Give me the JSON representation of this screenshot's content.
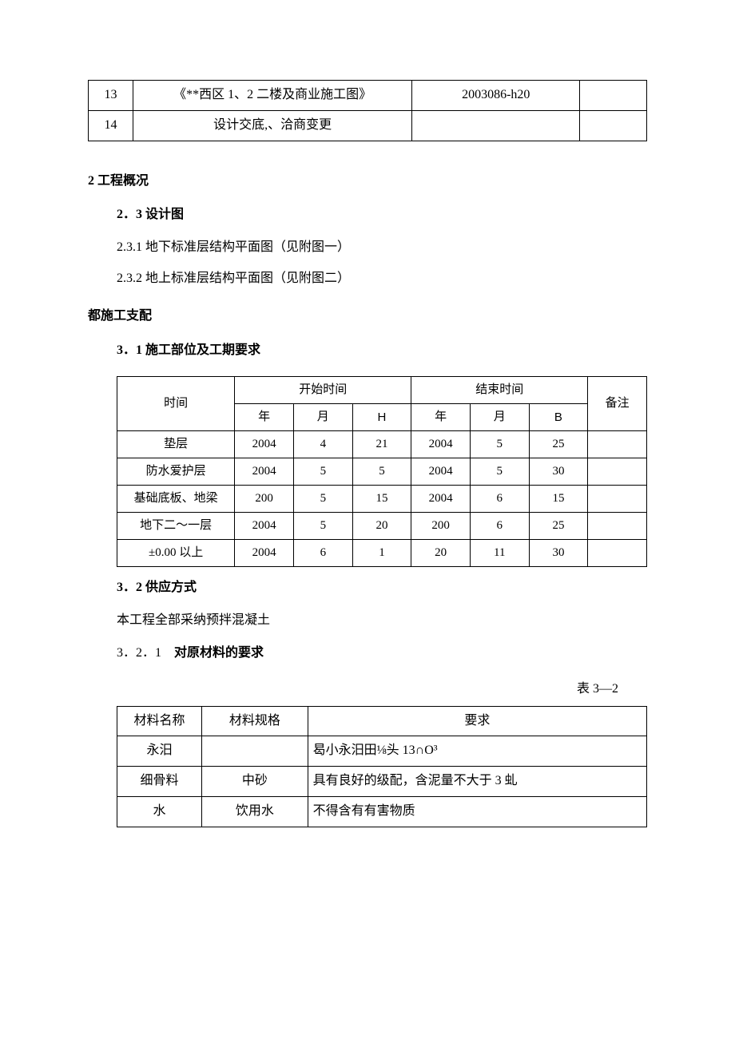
{
  "topTable": {
    "rows": [
      {
        "num": "13",
        "title": "《**西区 1、2 二楼及商业施工图》",
        "code": "2003086-h20",
        "blank": ""
      },
      {
        "num": "14",
        "title": "设计交底,、洽商变更",
        "code": "",
        "blank": ""
      }
    ]
  },
  "sec2": {
    "heading": "2 工程概况",
    "sub": "2．3 设计图",
    "lines": [
      "2.3.1 地下标准层结构平面图（见附图一）",
      "2.3.2 地上标准层结构平面图（见附图二）"
    ]
  },
  "sec3intro": "都施工支配",
  "sec31": "3．1 施工部位及工期要求",
  "schedule": {
    "headers": {
      "time": "时间",
      "start": "开始时间",
      "end": "结束时间",
      "remark": "备注",
      "year": "年",
      "month": "月",
      "dayStart": "H",
      "dayEnd": "B"
    },
    "rows": [
      {
        "name": "垫层",
        "sy": "2004",
        "sm": "4",
        "sd": "21",
        "ey": "2004",
        "em": "5",
        "ed": "25",
        "r": ""
      },
      {
        "name": "防水爱护层",
        "sy": "2004",
        "sm": "5",
        "sd": "5",
        "ey": "2004",
        "em": "5",
        "ed": "30",
        "r": ""
      },
      {
        "name": "基础底板、地梁",
        "sy": "200",
        "sm": "5",
        "sd": "15",
        "ey": "2004",
        "em": "6",
        "ed": "15",
        "r": ""
      },
      {
        "name": "地下二〜一层",
        "sy": "2004",
        "sm": "5",
        "sd": "20",
        "ey": "200",
        "em": "6",
        "ed": "25",
        "r": ""
      },
      {
        "name": "±0.00 以上",
        "sy": "2004",
        "sm": "6",
        "sd": "1",
        "ey": "20",
        "em": "11",
        "ed": "30",
        "r": ""
      }
    ]
  },
  "sec32": {
    "heading": "3．2 供应方式",
    "body": "本工程全部采纳预拌混凝土",
    "sub": "3．2．1",
    "subTitle": "对原材料的要求",
    "tableLabel": "表 3—2"
  },
  "materials": {
    "headers": {
      "name": "材料名称",
      "spec": "材料规格",
      "req": "要求"
    },
    "rows": [
      {
        "name": "永汨",
        "spec": "",
        "req": "曷小永汨田⅛头 13∩O³"
      },
      {
        "name": "细骨料",
        "spec": "中砂",
        "req": "具有良好的级配，含泥量不大于 3 虬"
      },
      {
        "name": "水",
        "spec": "饮用水",
        "req": "不得含有有害物质"
      }
    ]
  }
}
